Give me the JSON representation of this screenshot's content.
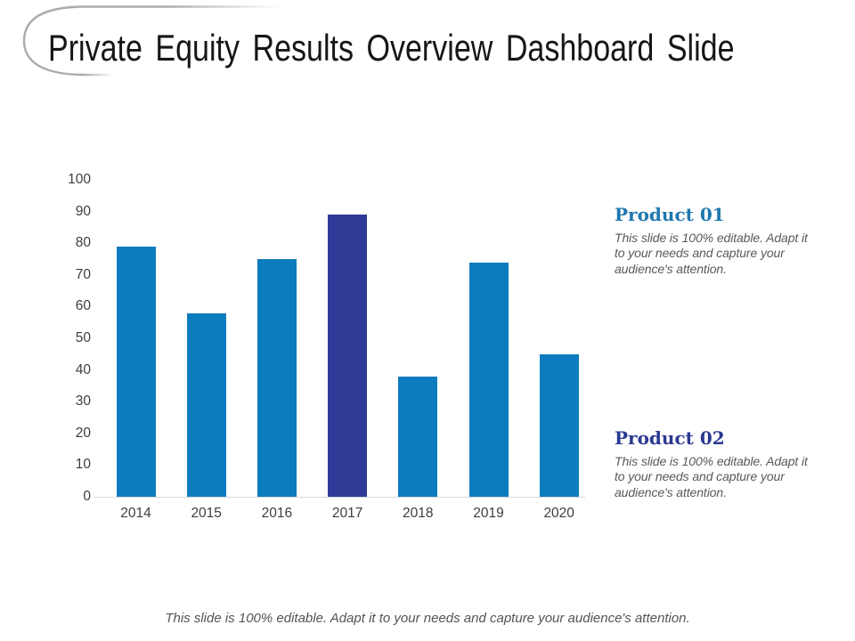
{
  "header": {
    "title": "Private Equity Results Overview Dashboard Slide"
  },
  "chart_data": {
    "type": "bar",
    "title": "",
    "xlabel": "",
    "ylabel": "",
    "categories": [
      "2014",
      "2015",
      "2016",
      "2017",
      "2018",
      "2019",
      "2020"
    ],
    "values": [
      79,
      58,
      75,
      89,
      38,
      74,
      45
    ],
    "bar_colors": [
      "#0d7cbe",
      "#0d7cbe",
      "#0d7cbe",
      "#2e3b97",
      "#0d7cbe",
      "#0d7cbe",
      "#0d7cbe"
    ],
    "highlight_index": 3,
    "ylim": [
      0,
      100
    ],
    "yticks": [
      0,
      10,
      20,
      30,
      40,
      50,
      60,
      70,
      80,
      90,
      100
    ],
    "grid": false,
    "legend": "none",
    "axis_line_color": "#d9d9d9"
  },
  "products": [
    {
      "heading": "Product 01",
      "heading_color": "#1e78ad",
      "body_lines": [
        "This slide is 100% editable. Adapt it",
        "to your needs and capture your",
        "audience's attention."
      ]
    },
    {
      "heading": "Product 02",
      "heading_color": "#2b3990",
      "body_lines": [
        "This slide is 100% editable. Adapt it",
        "to your needs and capture your",
        "audience's attention."
      ]
    }
  ],
  "footer": {
    "text": "This slide is 100% editable. Adapt it to your needs and capture your audience's attention."
  }
}
